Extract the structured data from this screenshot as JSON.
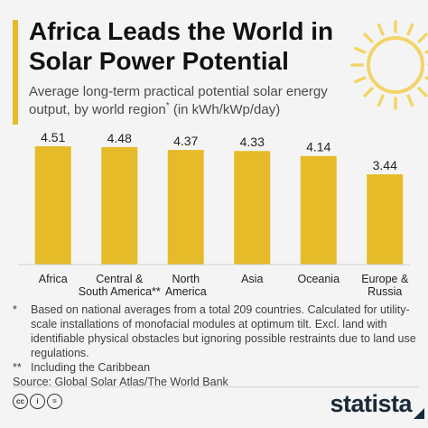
{
  "header": {
    "title": "Africa Leads the World in Solar Power Potential",
    "subtitle": "Average long-term practical potential solar energy output, by world region",
    "subtitle_marker": "*",
    "subtitle_unit": " (in kWh/kWp/day)"
  },
  "chart_data": {
    "type": "bar",
    "categories": [
      [
        "Africa"
      ],
      [
        "Central &",
        "South America**"
      ],
      [
        "North",
        "America"
      ],
      [
        "Asia"
      ],
      [
        "Oceania"
      ],
      [
        "Europe &",
        "Russia"
      ]
    ],
    "values": [
      4.51,
      4.48,
      4.37,
      4.33,
      4.14,
      3.44
    ],
    "value_labels": [
      "4.51",
      "4.48",
      "4.37",
      "4.33",
      "4.14",
      "3.44"
    ],
    "ylim": [
      0,
      4.51
    ],
    "grid": false,
    "bar_color": "#e6bb2a"
  },
  "notes": [
    {
      "mark": "*",
      "text": "Based on national averages from a total 209 countries. Calculated for utility-scale installations of monofacial modules at optimum tilt. Excl. land with identifiable physical obstacles but ignoring possible restraints due to land use regulations."
    },
    {
      "mark": "**",
      "text": "Including the Caribbean"
    }
  ],
  "source": "Source: Global Solar Atlas/The World Bank",
  "footer": {
    "license_icons": [
      "cc-icon",
      "attribution-icon",
      "no-derivatives-icon"
    ],
    "license_glyphs": [
      "cc",
      "i",
      "="
    ],
    "brand": "statista"
  },
  "colors": {
    "accent": "#e6bb2a",
    "sun": "#f2d56a",
    "background": "#f4f4f4",
    "brand": "#1b2a3a"
  }
}
